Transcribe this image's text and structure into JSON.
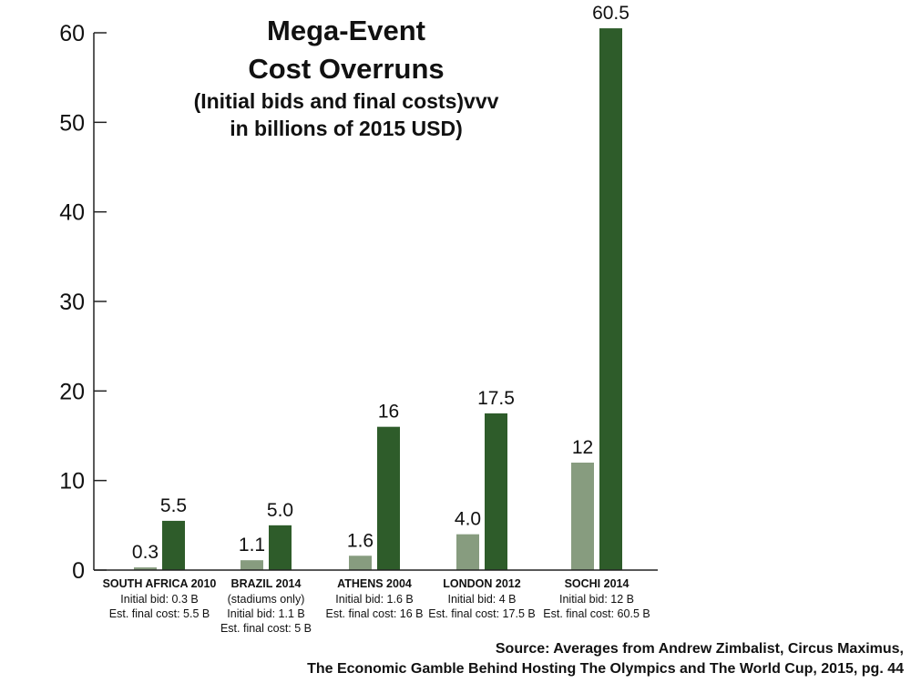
{
  "chart_data": {
    "type": "bar",
    "title": "Mega-Event Cost Overruns",
    "title_lines": [
      "Mega-Event",
      "Cost Overruns"
    ],
    "subtitle_lines": [
      "(Initial bids and final costs)vvv",
      "in billions of 2015 USD)"
    ],
    "ylim": [
      0,
      60
    ],
    "yticks": [
      0,
      10,
      20,
      30,
      40,
      50,
      60
    ],
    "grid": false,
    "categories": [
      {
        "name": "SOUTH AFRICA 2010",
        "lines": [
          "Initial bid: 0.3 B",
          "Est. final cost: 5.5 B"
        ]
      },
      {
        "name": "BRAZIL 2014",
        "lines": [
          "(stadiums only)",
          "Initial bid: 1.1 B",
          "Est. final cost: 5 B"
        ]
      },
      {
        "name": "ATHENS 2004",
        "lines": [
          "Initial bid: 1.6 B",
          "Est. final cost: 16 B"
        ]
      },
      {
        "name": "LONDON 2012",
        "lines": [
          "Initial bid: 4 B",
          "Est. final cost: 17.5 B"
        ]
      },
      {
        "name": "SOCHI 2014",
        "lines": [
          "Initial bid: 12 B",
          "Est. final cost: 60.5 B"
        ]
      }
    ],
    "series": [
      {
        "key": "initial",
        "values": [
          0.3,
          1.1,
          1.6,
          4.0,
          12
        ],
        "labels": [
          "0.3",
          "1.1",
          "1.6",
          "4.0",
          "12"
        ],
        "color": "#879c7f"
      },
      {
        "key": "final",
        "values": [
          5.5,
          5.0,
          16,
          17.5,
          60.5
        ],
        "labels": [
          "5.5",
          "5.0",
          "16",
          "17.5",
          "60.5"
        ],
        "color": "#2e5c2a"
      }
    ]
  },
  "source_lines": [
    "Source: Averages from Andrew Zimbalist, Circus Maximus,",
    "The Economic Gamble Behind Hosting The Olympics and The World Cup, 2015, pg. 44"
  ]
}
